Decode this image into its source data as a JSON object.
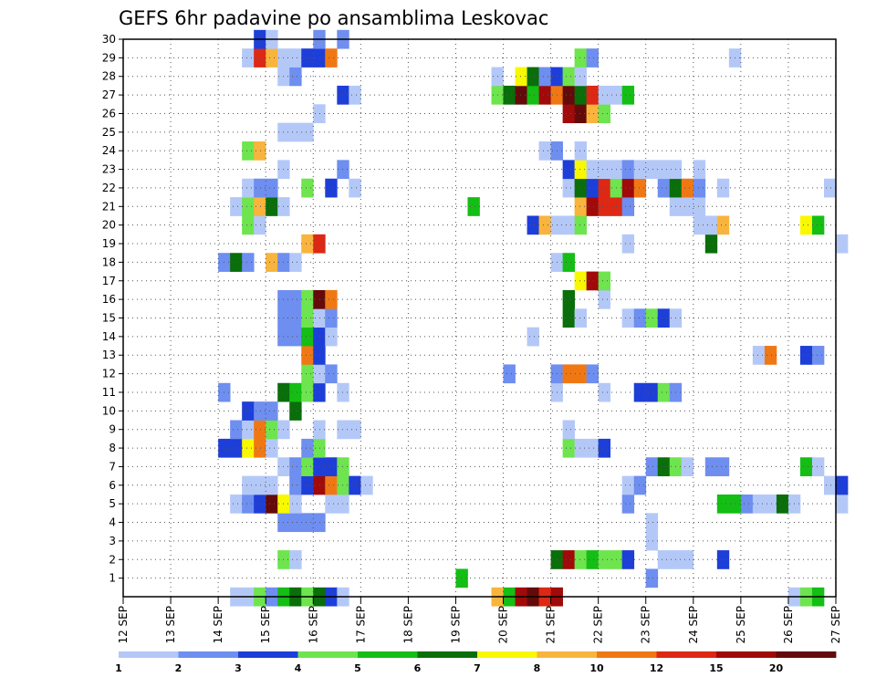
{
  "chart_data": {
    "type": "heatmap",
    "title": "GEFS 6hr padavine po ansamblima Leskovac",
    "xlabel": "",
    "ylabel": "",
    "x_tick_labels": [
      "12 SEP",
      "13 SEP",
      "14 SEP",
      "15 SEP",
      "16 SEP",
      "17 SEP",
      "18 SEP",
      "19 SEP",
      "20 SEP",
      "21 SEP",
      "22 SEP",
      "23 SEP",
      "24 SEP",
      "25 SEP",
      "26 SEP",
      "27 SEP"
    ],
    "y_tick_labels": [
      "1",
      "2",
      "3",
      "4",
      "5",
      "6",
      "7",
      "8",
      "9",
      "10",
      "11",
      "12",
      "13",
      "14",
      "15",
      "16",
      "17",
      "18",
      "19",
      "20",
      "21",
      "22",
      "23",
      "24",
      "25",
      "26",
      "27",
      "28",
      "29",
      "30"
    ],
    "members_range": [
      0,
      30
    ],
    "time_step_hours": 6,
    "colorbar": {
      "labels": [
        "1",
        "2",
        "3",
        "4",
        "5",
        "6",
        "7",
        "8",
        "10",
        "12",
        "15",
        "20"
      ],
      "colors": [
        "#b4c8f8",
        "#6e8ef0",
        "#1e3ed8",
        "#6ee44e",
        "#14be14",
        "#0a6e0a",
        "#f8f800",
        "#f8b43c",
        "#f07814",
        "#dc2814",
        "#a00a0a",
        "#640a0a"
      ]
    },
    "grid": "dotted",
    "cells": [
      [
        0,
        9,
        1
      ],
      [
        0,
        10,
        1
      ],
      [
        0,
        11,
        4
      ],
      [
        0,
        12,
        2
      ],
      [
        0,
        13,
        5
      ],
      [
        0,
        14,
        6
      ],
      [
        0,
        15,
        4
      ],
      [
        0,
        16,
        6
      ],
      [
        0,
        17,
        3
      ],
      [
        0,
        18,
        1
      ],
      [
        0,
        31,
        8
      ],
      [
        0,
        32,
        5
      ],
      [
        0,
        33,
        11
      ],
      [
        0,
        34,
        12
      ],
      [
        0,
        35,
        10
      ],
      [
        0,
        36,
        11
      ],
      [
        0,
        56,
        1
      ],
      [
        0,
        57,
        4
      ],
      [
        0,
        58,
        5
      ],
      [
        1,
        28,
        5
      ],
      [
        1,
        44,
        2
      ],
      [
        2,
        13,
        4
      ],
      [
        2,
        14,
        1
      ],
      [
        2,
        36,
        6
      ],
      [
        2,
        37,
        11
      ],
      [
        2,
        38,
        4
      ],
      [
        2,
        39,
        5
      ],
      [
        2,
        40,
        4
      ],
      [
        2,
        41,
        4
      ],
      [
        2,
        42,
        3
      ],
      [
        2,
        45,
        1
      ],
      [
        2,
        46,
        1
      ],
      [
        2,
        47,
        1
      ],
      [
        2,
        50,
        3
      ],
      [
        3,
        44,
        1
      ],
      [
        4,
        13,
        2
      ],
      [
        4,
        14,
        2
      ],
      [
        4,
        15,
        2
      ],
      [
        4,
        16,
        2
      ],
      [
        4,
        44,
        1
      ],
      [
        5,
        9,
        1
      ],
      [
        5,
        10,
        2
      ],
      [
        5,
        11,
        3
      ],
      [
        5,
        12,
        12
      ],
      [
        5,
        13,
        7
      ],
      [
        5,
        14,
        1
      ],
      [
        5,
        17,
        1
      ],
      [
        5,
        18,
        1
      ],
      [
        5,
        42,
        2
      ],
      [
        5,
        50,
        5
      ],
      [
        5,
        51,
        5
      ],
      [
        5,
        52,
        2
      ],
      [
        5,
        53,
        1
      ],
      [
        5,
        54,
        1
      ],
      [
        5,
        55,
        6
      ],
      [
        5,
        56,
        1
      ],
      [
        5,
        60,
        1
      ],
      [
        6,
        10,
        1
      ],
      [
        6,
        11,
        1
      ],
      [
        6,
        12,
        1
      ],
      [
        6,
        14,
        2
      ],
      [
        6,
        15,
        3
      ],
      [
        6,
        16,
        11
      ],
      [
        6,
        17,
        9
      ],
      [
        6,
        18,
        4
      ],
      [
        6,
        19,
        3
      ],
      [
        6,
        20,
        1
      ],
      [
        6,
        42,
        1
      ],
      [
        6,
        43,
        2
      ],
      [
        6,
        59,
        1
      ],
      [
        6,
        60,
        3
      ],
      [
        7,
        13,
        1
      ],
      [
        7,
        14,
        2
      ],
      [
        7,
        15,
        4
      ],
      [
        7,
        16,
        3
      ],
      [
        7,
        17,
        3
      ],
      [
        7,
        18,
        4
      ],
      [
        7,
        44,
        2
      ],
      [
        7,
        45,
        6
      ],
      [
        7,
        46,
        4
      ],
      [
        7,
        47,
        1
      ],
      [
        7,
        49,
        2
      ],
      [
        7,
        50,
        2
      ],
      [
        7,
        57,
        5
      ],
      [
        7,
        58,
        1
      ],
      [
        8,
        8,
        3
      ],
      [
        8,
        9,
        3
      ],
      [
        8,
        10,
        7
      ],
      [
        8,
        11,
        9
      ],
      [
        8,
        12,
        1
      ],
      [
        8,
        15,
        2
      ],
      [
        8,
        16,
        4
      ],
      [
        8,
        37,
        4
      ],
      [
        8,
        38,
        1
      ],
      [
        8,
        39,
        1
      ],
      [
        8,
        40,
        3
      ],
      [
        9,
        9,
        2
      ],
      [
        9,
        10,
        1
      ],
      [
        9,
        11,
        9
      ],
      [
        9,
        12,
        4
      ],
      [
        9,
        13,
        1
      ],
      [
        9,
        16,
        1
      ],
      [
        9,
        18,
        1
      ],
      [
        9,
        19,
        1
      ],
      [
        9,
        37,
        1
      ],
      [
        10,
        10,
        3
      ],
      [
        10,
        11,
        2
      ],
      [
        10,
        12,
        2
      ],
      [
        10,
        14,
        6
      ],
      [
        11,
        8,
        2
      ],
      [
        11,
        13,
        6
      ],
      [
        11,
        14,
        5
      ],
      [
        11,
        15,
        4
      ],
      [
        11,
        16,
        3
      ],
      [
        11,
        18,
        1
      ],
      [
        11,
        36,
        1
      ],
      [
        11,
        40,
        1
      ],
      [
        11,
        43,
        3
      ],
      [
        11,
        44,
        3
      ],
      [
        11,
        45,
        4
      ],
      [
        11,
        46,
        2
      ],
      [
        12,
        15,
        4
      ],
      [
        12,
        16,
        1
      ],
      [
        12,
        17,
        2
      ],
      [
        12,
        32,
        2
      ],
      [
        12,
        36,
        2
      ],
      [
        12,
        37,
        9
      ],
      [
        12,
        38,
        9
      ],
      [
        12,
        39,
        2
      ],
      [
        13,
        15,
        9
      ],
      [
        13,
        16,
        3
      ],
      [
        13,
        53,
        1
      ],
      [
        13,
        54,
        9
      ],
      [
        13,
        57,
        3
      ],
      [
        13,
        58,
        2
      ],
      [
        14,
        13,
        2
      ],
      [
        14,
        14,
        2
      ],
      [
        14,
        15,
        5
      ],
      [
        14,
        16,
        3
      ],
      [
        14,
        17,
        1
      ],
      [
        14,
        34,
        1
      ],
      [
        15,
        13,
        2
      ],
      [
        15,
        14,
        2
      ],
      [
        15,
        15,
        4
      ],
      [
        15,
        16,
        1
      ],
      [
        15,
        17,
        2
      ],
      [
        15,
        37,
        6
      ],
      [
        15,
        38,
        1
      ],
      [
        15,
        42,
        1
      ],
      [
        15,
        43,
        2
      ],
      [
        15,
        44,
        4
      ],
      [
        15,
        45,
        3
      ],
      [
        15,
        46,
        1
      ],
      [
        16,
        13,
        2
      ],
      [
        16,
        14,
        2
      ],
      [
        16,
        15,
        4
      ],
      [
        16,
        16,
        12
      ],
      [
        16,
        17,
        9
      ],
      [
        16,
        37,
        6
      ],
      [
        16,
        40,
        1
      ],
      [
        17,
        38,
        7
      ],
      [
        17,
        39,
        11
      ],
      [
        17,
        40,
        4
      ],
      [
        18,
        8,
        2
      ],
      [
        18,
        9,
        6
      ],
      [
        18,
        10,
        2
      ],
      [
        18,
        12,
        8
      ],
      [
        18,
        13,
        2
      ],
      [
        18,
        14,
        1
      ],
      [
        18,
        36,
        1
      ],
      [
        18,
        37,
        5
      ],
      [
        19,
        15,
        8
      ],
      [
        19,
        16,
        10
      ],
      [
        19,
        42,
        1
      ],
      [
        19,
        49,
        6
      ],
      [
        19,
        60,
        1
      ],
      [
        20,
        10,
        4
      ],
      [
        20,
        11,
        1
      ],
      [
        20,
        34,
        3
      ],
      [
        20,
        35,
        8
      ],
      [
        20,
        36,
        1
      ],
      [
        20,
        37,
        1
      ],
      [
        20,
        38,
        4
      ],
      [
        20,
        48,
        1
      ],
      [
        20,
        49,
        1
      ],
      [
        20,
        50,
        8
      ],
      [
        20,
        57,
        7
      ],
      [
        20,
        58,
        5
      ],
      [
        21,
        9,
        1
      ],
      [
        21,
        10,
        4
      ],
      [
        21,
        11,
        8
      ],
      [
        21,
        12,
        6
      ],
      [
        21,
        13,
        1
      ],
      [
        21,
        29,
        5
      ],
      [
        21,
        38,
        8
      ],
      [
        21,
        39,
        11
      ],
      [
        21,
        40,
        10
      ],
      [
        21,
        41,
        10
      ],
      [
        21,
        42,
        2
      ],
      [
        21,
        46,
        1
      ],
      [
        21,
        47,
        1
      ],
      [
        21,
        48,
        1
      ],
      [
        22,
        10,
        1
      ],
      [
        22,
        11,
        2
      ],
      [
        22,
        12,
        2
      ],
      [
        22,
        15,
        4
      ],
      [
        22,
        17,
        3
      ],
      [
        22,
        19,
        1
      ],
      [
        22,
        37,
        1
      ],
      [
        22,
        38,
        6
      ],
      [
        22,
        39,
        3
      ],
      [
        22,
        40,
        10
      ],
      [
        22,
        41,
        4
      ],
      [
        22,
        42,
        11
      ],
      [
        22,
        43,
        9
      ],
      [
        22,
        45,
        2
      ],
      [
        22,
        46,
        6
      ],
      [
        22,
        47,
        9
      ],
      [
        22,
        48,
        2
      ],
      [
        22,
        50,
        1
      ],
      [
        22,
        59,
        1
      ],
      [
        23,
        13,
        1
      ],
      [
        23,
        18,
        2
      ],
      [
        23,
        37,
        3
      ],
      [
        23,
        38,
        7
      ],
      [
        23,
        39,
        1
      ],
      [
        23,
        40,
        1
      ],
      [
        23,
        41,
        1
      ],
      [
        23,
        42,
        2
      ],
      [
        23,
        43,
        1
      ],
      [
        23,
        44,
        1
      ],
      [
        23,
        45,
        1
      ],
      [
        23,
        46,
        1
      ],
      [
        23,
        48,
        1
      ],
      [
        24,
        10,
        4
      ],
      [
        24,
        11,
        8
      ],
      [
        24,
        35,
        1
      ],
      [
        24,
        36,
        2
      ],
      [
        24,
        38,
        1
      ],
      [
        25,
        13,
        1
      ],
      [
        25,
        14,
        1
      ],
      [
        25,
        15,
        1
      ],
      [
        26,
        16,
        1
      ],
      [
        26,
        37,
        11
      ],
      [
        26,
        38,
        12
      ],
      [
        26,
        39,
        8
      ],
      [
        26,
        40,
        4
      ],
      [
        27,
        18,
        3
      ],
      [
        27,
        19,
        1
      ],
      [
        27,
        31,
        4
      ],
      [
        27,
        32,
        6
      ],
      [
        27,
        33,
        12
      ],
      [
        27,
        34,
        5
      ],
      [
        27,
        35,
        11
      ],
      [
        27,
        36,
        9
      ],
      [
        27,
        37,
        12
      ],
      [
        27,
        38,
        6
      ],
      [
        27,
        39,
        10
      ],
      [
        27,
        40,
        1
      ],
      [
        27,
        41,
        1
      ],
      [
        27,
        42,
        5
      ],
      [
        28,
        13,
        1
      ],
      [
        28,
        14,
        2
      ],
      [
        28,
        31,
        1
      ],
      [
        28,
        33,
        7
      ],
      [
        28,
        34,
        6
      ],
      [
        28,
        35,
        2
      ],
      [
        28,
        36,
        3
      ],
      [
        28,
        37,
        4
      ],
      [
        28,
        38,
        1
      ],
      [
        29,
        10,
        1
      ],
      [
        29,
        11,
        10
      ],
      [
        29,
        12,
        8
      ],
      [
        29,
        13,
        1
      ],
      [
        29,
        14,
        1
      ],
      [
        29,
        15,
        3
      ],
      [
        29,
        16,
        3
      ],
      [
        29,
        17,
        9
      ],
      [
        29,
        38,
        4
      ],
      [
        29,
        39,
        2
      ],
      [
        29,
        51,
        1
      ],
      [
        30,
        11,
        3
      ],
      [
        30,
        12,
        1
      ],
      [
        30,
        16,
        2
      ],
      [
        30,
        18,
        2
      ]
    ]
  }
}
